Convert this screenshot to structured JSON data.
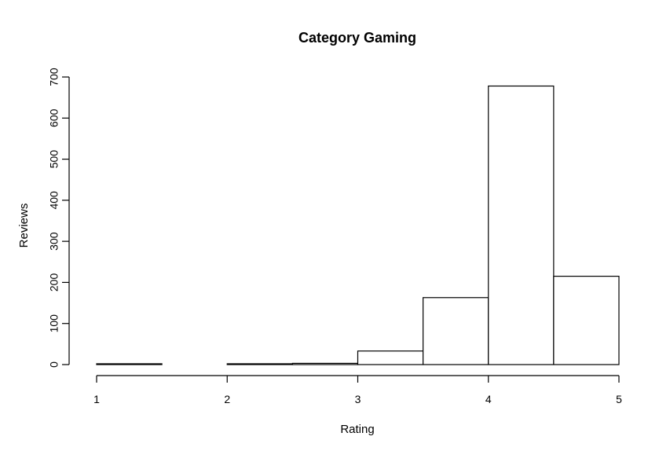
{
  "chart_data": {
    "type": "bar",
    "title": "Category Gaming",
    "xlabel": "Rating",
    "ylabel": "Reviews",
    "bins": [
      {
        "start": 1.0,
        "end": 1.5,
        "value": 2
      },
      {
        "start": 1.5,
        "end": 2.0,
        "value": 0
      },
      {
        "start": 2.0,
        "end": 2.5,
        "value": 2
      },
      {
        "start": 2.5,
        "end": 3.0,
        "value": 3
      },
      {
        "start": 3.0,
        "end": 3.5,
        "value": 33
      },
      {
        "start": 3.5,
        "end": 4.0,
        "value": 163
      },
      {
        "start": 4.0,
        "end": 4.5,
        "value": 678
      },
      {
        "start": 4.5,
        "end": 5.0,
        "value": 215
      }
    ],
    "xlim": [
      1,
      5
    ],
    "ylim": [
      0,
      700
    ],
    "x_ticks": [
      "1",
      "2",
      "3",
      "4",
      "5"
    ],
    "y_ticks": [
      "0",
      "100",
      "200",
      "300",
      "400",
      "500",
      "600",
      "700"
    ],
    "grid": false,
    "legend": "none",
    "colors": {
      "bar_fill": "#ffffff",
      "bar_stroke": "#000000",
      "axis": "#000000",
      "text": "#000000"
    }
  }
}
